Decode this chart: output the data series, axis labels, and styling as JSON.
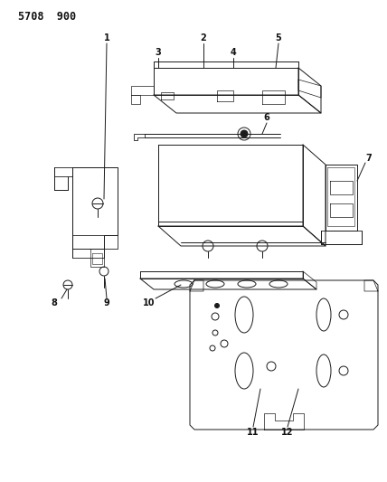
{
  "title": "5708  900",
  "bg_color": "#ffffff",
  "line_color": "#1a1a1a",
  "label_color": "#111111",
  "label_fontsize": 7,
  "title_fontsize": 8.5,
  "lw": 0.7
}
